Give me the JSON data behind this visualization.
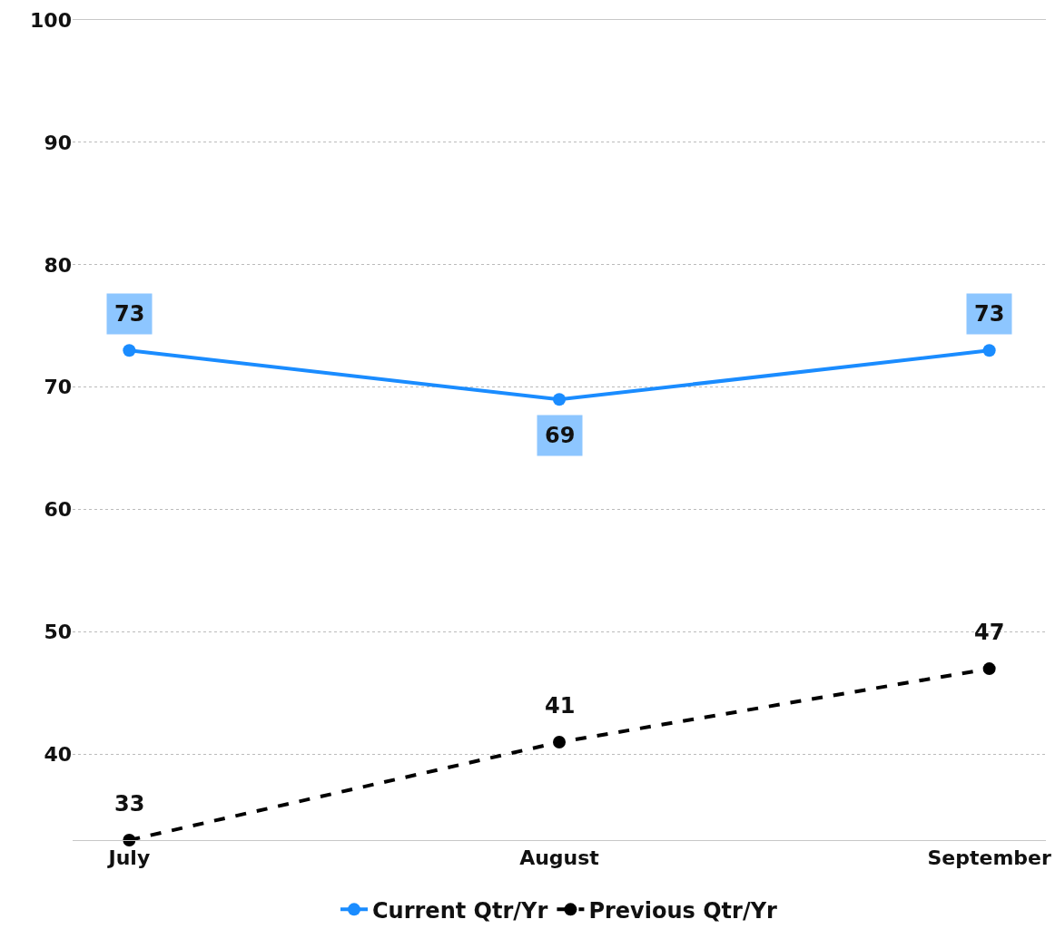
{
  "chart_data": {
    "type": "line",
    "categories": [
      "July",
      "August",
      "September"
    ],
    "series": [
      {
        "name": "Current Qtr/Yr",
        "color": "#1a8cff",
        "values": [
          73,
          69,
          73
        ],
        "line_style": "solid"
      },
      {
        "name": "Previous Qtr/Yr",
        "color": "#000000",
        "values": [
          33,
          41,
          47
        ],
        "line_style": "dashed"
      }
    ],
    "ylim": [
      33,
      100
    ],
    "yticks": [
      40,
      50,
      60,
      70,
      80,
      90,
      100
    ],
    "grid": "y",
    "legend": "bottom",
    "marker": "circle",
    "data_labels": true
  }
}
